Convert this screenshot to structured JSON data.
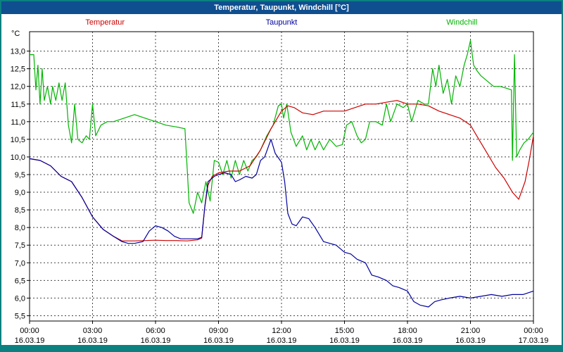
{
  "window": {
    "title": "Temperatur, Taupunkt, Windchill [°C]"
  },
  "colors": {
    "titlebar_bg": "#0f4e8f",
    "titlebar_text": "#ffffff",
    "frame": "#0b8080",
    "grid": "#444444",
    "plot_bg": "#ffffff",
    "axis": "#000000"
  },
  "chart_data": {
    "type": "line",
    "title": "Temperatur, Taupunkt, Windchill [°C]",
    "legend_position": "top",
    "grid": "dashed",
    "x_axis": {
      "range_hours": [
        0,
        24
      ],
      "ticks": [
        {
          "hour": 0,
          "time": "00:00",
          "date": "16.03.19"
        },
        {
          "hour": 3,
          "time": "03:00",
          "date": "16.03.19"
        },
        {
          "hour": 6,
          "time": "06:00",
          "date": "16.03.19"
        },
        {
          "hour": 9,
          "time": "09:00",
          "date": "16.03.19"
        },
        {
          "hour": 12,
          "time": "12:00",
          "date": "16.03.19"
        },
        {
          "hour": 15,
          "time": "15:00",
          "date": "16.03.19"
        },
        {
          "hour": 18,
          "time": "18:00",
          "date": "16.03.19"
        },
        {
          "hour": 21,
          "time": "21:00",
          "date": "16.03.19"
        },
        {
          "hour": 24,
          "time": "00:00",
          "date": "17.03.19"
        }
      ]
    },
    "y_axis": {
      "unit": "°C",
      "range": [
        5.35,
        13.55
      ],
      "tick_values": [
        13.0,
        12.5,
        12.0,
        11.5,
        11.0,
        10.5,
        10.0,
        9.5,
        9.0,
        8.5,
        8.0,
        7.5,
        7.0,
        6.5,
        6.0,
        5.5
      ],
      "tick_labels": [
        "13,0",
        "12,5",
        "12,0",
        "11,5",
        "11,0",
        "10,5",
        "10,0",
        "9,5",
        "9,0",
        "8,5",
        "8,0",
        "7,5",
        "7,0",
        "6,5",
        "6,0",
        "5,5"
      ]
    },
    "series": [
      {
        "name": "Temperatur",
        "color": "#cc0000",
        "points": [
          [
            0,
            9.95
          ],
          [
            0.5,
            9.9
          ],
          [
            1,
            9.75
          ],
          [
            1.5,
            9.45
          ],
          [
            2,
            9.3
          ],
          [
            2.5,
            8.85
          ],
          [
            3,
            8.3
          ],
          [
            3.5,
            7.95
          ],
          [
            4,
            7.75
          ],
          [
            4.4,
            7.62
          ],
          [
            5,
            7.62
          ],
          [
            5.5,
            7.63
          ],
          [
            6,
            7.64
          ],
          [
            6.5,
            7.63
          ],
          [
            7,
            7.63
          ],
          [
            7.5,
            7.62
          ],
          [
            8,
            7.65
          ],
          [
            8.2,
            7.7
          ],
          [
            8.35,
            8.6
          ],
          [
            8.5,
            9.2
          ],
          [
            8.7,
            9.45
          ],
          [
            9,
            9.55
          ],
          [
            9.5,
            9.6
          ],
          [
            10,
            9.6
          ],
          [
            10.5,
            9.75
          ],
          [
            11,
            10.2
          ],
          [
            11.5,
            10.8
          ],
          [
            12,
            11.3
          ],
          [
            12.3,
            11.45
          ],
          [
            12.6,
            11.4
          ],
          [
            13,
            11.25
          ],
          [
            13.5,
            11.2
          ],
          [
            14,
            11.3
          ],
          [
            14.5,
            11.3
          ],
          [
            15,
            11.3
          ],
          [
            15.5,
            11.4
          ],
          [
            16,
            11.5
          ],
          [
            16.5,
            11.5
          ],
          [
            17,
            11.55
          ],
          [
            17.5,
            11.6
          ],
          [
            18,
            11.5
          ],
          [
            18.5,
            11.5
          ],
          [
            19,
            11.45
          ],
          [
            19.5,
            11.3
          ],
          [
            20,
            11.2
          ],
          [
            20.5,
            11.1
          ],
          [
            21,
            10.9
          ],
          [
            21.4,
            10.5
          ],
          [
            21.8,
            10.1
          ],
          [
            22.2,
            9.7
          ],
          [
            22.6,
            9.4
          ],
          [
            23,
            9.0
          ],
          [
            23.3,
            8.8
          ],
          [
            23.6,
            9.3
          ],
          [
            23.8,
            9.9
          ],
          [
            24,
            10.6
          ]
        ]
      },
      {
        "name": "Taupunkt",
        "color": "#0000a0",
        "points": [
          [
            0,
            9.95
          ],
          [
            0.5,
            9.9
          ],
          [
            1,
            9.75
          ],
          [
            1.5,
            9.45
          ],
          [
            2,
            9.3
          ],
          [
            2.5,
            8.85
          ],
          [
            3,
            8.3
          ],
          [
            3.5,
            7.95
          ],
          [
            4,
            7.75
          ],
          [
            4.4,
            7.6
          ],
          [
            4.7,
            7.55
          ],
          [
            5,
            7.55
          ],
          [
            5.4,
            7.6
          ],
          [
            5.7,
            7.9
          ],
          [
            6,
            8.05
          ],
          [
            6.3,
            8.0
          ],
          [
            6.6,
            7.9
          ],
          [
            6.9,
            7.75
          ],
          [
            7.2,
            7.68
          ],
          [
            7.6,
            7.68
          ],
          [
            8,
            7.68
          ],
          [
            8.2,
            7.72
          ],
          [
            8.35,
            8.6
          ],
          [
            8.5,
            9.3
          ],
          [
            8.8,
            9.45
          ],
          [
            9,
            9.5
          ],
          [
            9.3,
            9.55
          ],
          [
            9.6,
            9.5
          ],
          [
            9.8,
            9.3
          ],
          [
            10,
            9.35
          ],
          [
            10.3,
            9.45
          ],
          [
            10.6,
            9.4
          ],
          [
            10.8,
            9.5
          ],
          [
            11,
            9.9
          ],
          [
            11.2,
            10.0
          ],
          [
            11.5,
            10.5
          ],
          [
            11.7,
            10.1
          ],
          [
            12,
            9.85
          ],
          [
            12.15,
            9.3
          ],
          [
            12.3,
            8.4
          ],
          [
            12.5,
            8.1
          ],
          [
            12.7,
            8.05
          ],
          [
            13,
            8.3
          ],
          [
            13.3,
            8.25
          ],
          [
            13.6,
            8.0
          ],
          [
            14,
            7.6
          ],
          [
            14.3,
            7.55
          ],
          [
            14.6,
            7.5
          ],
          [
            15,
            7.3
          ],
          [
            15.3,
            7.25
          ],
          [
            15.6,
            7.1
          ],
          [
            16,
            7.0
          ],
          [
            16.3,
            6.65
          ],
          [
            16.6,
            6.6
          ],
          [
            17,
            6.5
          ],
          [
            17.3,
            6.35
          ],
          [
            17.6,
            6.3
          ],
          [
            18,
            6.2
          ],
          [
            18.3,
            5.9
          ],
          [
            18.6,
            5.8
          ],
          [
            19,
            5.75
          ],
          [
            19.3,
            5.9
          ],
          [
            19.6,
            5.95
          ],
          [
            20,
            6.0
          ],
          [
            20.5,
            6.05
          ],
          [
            21,
            6.0
          ],
          [
            21.5,
            6.05
          ],
          [
            22,
            6.1
          ],
          [
            22.5,
            6.05
          ],
          [
            23,
            6.1
          ],
          [
            23.5,
            6.1
          ],
          [
            24,
            6.2
          ]
        ]
      },
      {
        "name": "Windchill",
        "color": "#00b400",
        "points": [
          [
            0,
            12.9
          ],
          [
            0.2,
            12.9
          ],
          [
            0.3,
            11.9
          ],
          [
            0.4,
            12.6
          ],
          [
            0.5,
            11.5
          ],
          [
            0.6,
            12.5
          ],
          [
            0.7,
            11.6
          ],
          [
            0.85,
            12.0
          ],
          [
            1.0,
            11.5
          ],
          [
            1.1,
            12.0
          ],
          [
            1.25,
            11.6
          ],
          [
            1.4,
            12.1
          ],
          [
            1.55,
            11.6
          ],
          [
            1.7,
            12.1
          ],
          [
            1.85,
            10.9
          ],
          [
            2.0,
            10.4
          ],
          [
            2.15,
            11.5
          ],
          [
            2.3,
            10.5
          ],
          [
            2.5,
            10.4
          ],
          [
            2.7,
            10.6
          ],
          [
            2.85,
            10.5
          ],
          [
            3.0,
            11.5
          ],
          [
            3.15,
            10.6
          ],
          [
            3.4,
            10.9
          ],
          [
            3.7,
            11.0
          ],
          [
            4.0,
            11.0
          ],
          [
            4.5,
            11.1
          ],
          [
            5.0,
            11.2
          ],
          [
            5.5,
            11.1
          ],
          [
            6.0,
            11.0
          ],
          [
            6.5,
            10.9
          ],
          [
            7.0,
            10.85
          ],
          [
            7.4,
            10.8
          ],
          [
            7.6,
            8.7
          ],
          [
            7.8,
            8.4
          ],
          [
            8.0,
            9.0
          ],
          [
            8.2,
            8.7
          ],
          [
            8.4,
            9.3
          ],
          [
            8.6,
            8.75
          ],
          [
            8.8,
            9.9
          ],
          [
            9.0,
            9.85
          ],
          [
            9.2,
            9.5
          ],
          [
            9.4,
            9.9
          ],
          [
            9.6,
            9.4
          ],
          [
            9.8,
            9.9
          ],
          [
            10.0,
            9.5
          ],
          [
            10.2,
            9.9
          ],
          [
            10.4,
            9.6
          ],
          [
            10.6,
            9.9
          ],
          [
            10.8,
            10.0
          ],
          [
            11.0,
            10.2
          ],
          [
            11.3,
            10.6
          ],
          [
            11.6,
            10.9
          ],
          [
            11.85,
            11.45
          ],
          [
            12.0,
            11.5
          ],
          [
            12.1,
            11.1
          ],
          [
            12.25,
            11.5
          ],
          [
            12.45,
            10.7
          ],
          [
            12.7,
            10.3
          ],
          [
            13.0,
            10.6
          ],
          [
            13.2,
            10.2
          ],
          [
            13.4,
            10.5
          ],
          [
            13.6,
            10.2
          ],
          [
            13.8,
            10.45
          ],
          [
            14.0,
            10.2
          ],
          [
            14.3,
            10.5
          ],
          [
            14.6,
            10.3
          ],
          [
            14.9,
            10.35
          ],
          [
            15.1,
            10.9
          ],
          [
            15.35,
            11.0
          ],
          [
            15.6,
            10.6
          ],
          [
            15.8,
            10.4
          ],
          [
            16.0,
            10.5
          ],
          [
            16.2,
            11.0
          ],
          [
            16.5,
            11.0
          ],
          [
            16.8,
            10.9
          ],
          [
            17.0,
            11.5
          ],
          [
            17.2,
            11.0
          ],
          [
            17.5,
            11.5
          ],
          [
            17.8,
            11.4
          ],
          [
            18.0,
            11.5
          ],
          [
            18.2,
            11.0
          ],
          [
            18.5,
            11.6
          ],
          [
            18.8,
            11.5
          ],
          [
            19.0,
            11.5
          ],
          [
            19.2,
            12.5
          ],
          [
            19.35,
            12.0
          ],
          [
            19.5,
            12.6
          ],
          [
            19.7,
            11.8
          ],
          [
            19.9,
            12.2
          ],
          [
            20.1,
            11.5
          ],
          [
            20.3,
            12.3
          ],
          [
            20.5,
            12.0
          ],
          [
            20.7,
            12.6
          ],
          [
            20.85,
            12.9
          ],
          [
            21.0,
            13.3
          ],
          [
            21.15,
            12.6
          ],
          [
            21.3,
            12.45
          ],
          [
            21.5,
            12.3
          ],
          [
            21.7,
            12.2
          ],
          [
            21.9,
            12.1
          ],
          [
            22.1,
            12.0
          ],
          [
            22.4,
            12.0
          ],
          [
            22.7,
            11.95
          ],
          [
            22.95,
            11.9
          ],
          [
            23.0,
            9.9
          ],
          [
            23.1,
            12.9
          ],
          [
            23.2,
            10.0
          ],
          [
            23.35,
            10.2
          ],
          [
            23.55,
            10.4
          ],
          [
            23.75,
            10.5
          ],
          [
            24,
            10.7
          ]
        ]
      }
    ]
  }
}
